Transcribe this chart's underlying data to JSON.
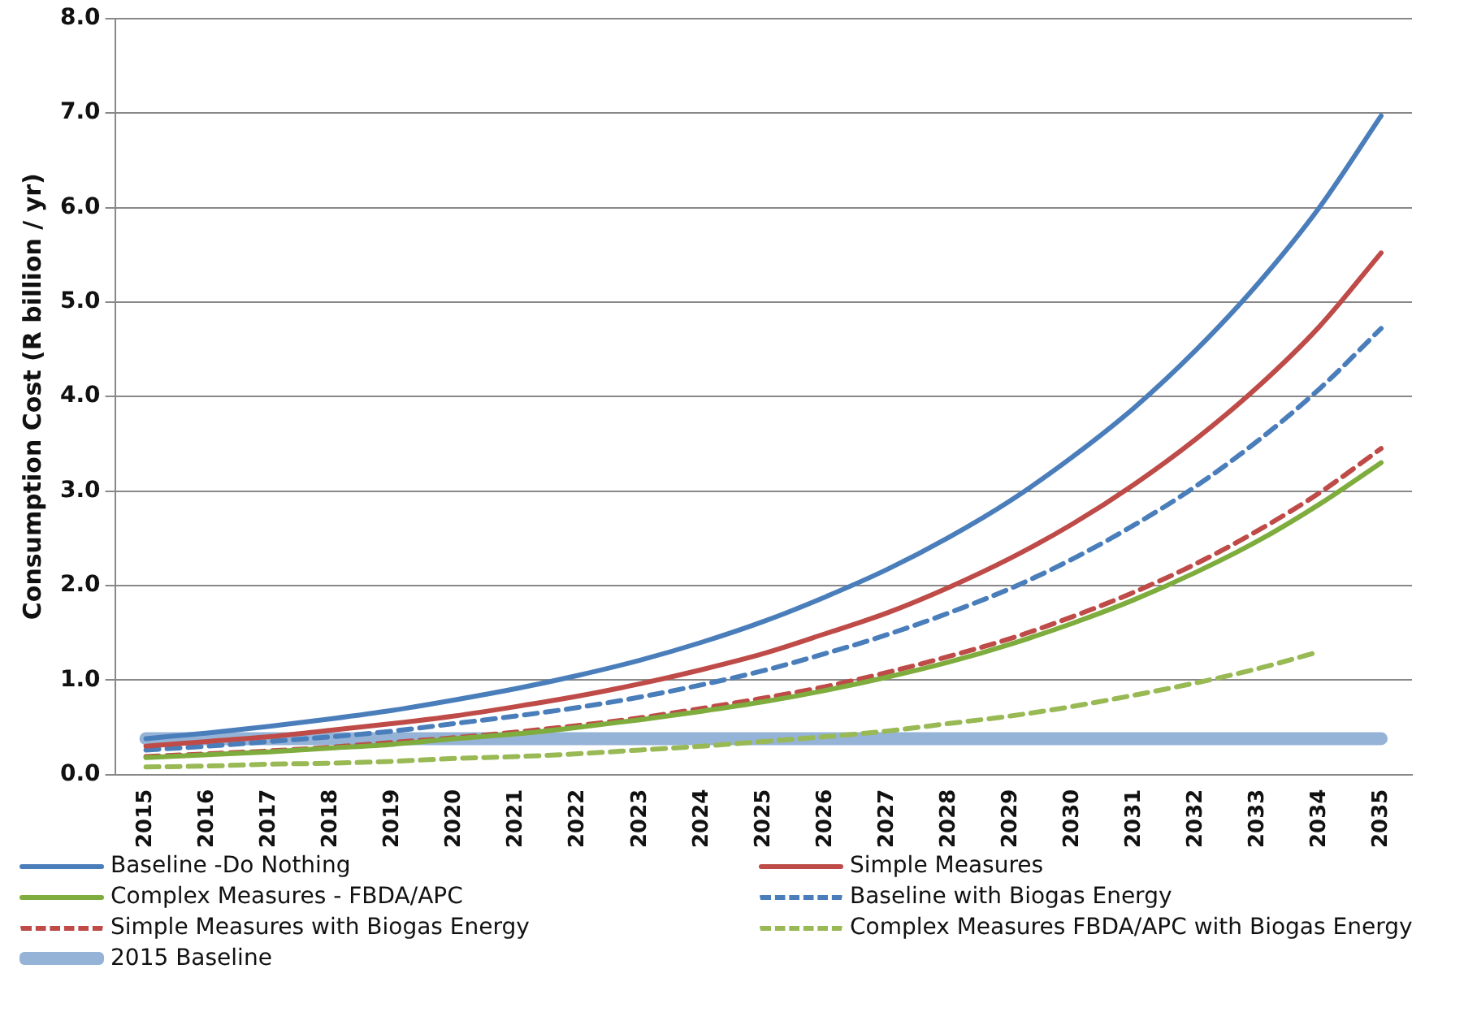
{
  "chart_data": {
    "type": "line",
    "ylabel": "Consumption Cost (R billion / yr)",
    "categories": [
      "2015",
      "2016",
      "2017",
      "2018",
      "2019",
      "2020",
      "2021",
      "2022",
      "2023",
      "2024",
      "2025",
      "2026",
      "2027",
      "2028",
      "2029",
      "2030",
      "2031",
      "2032",
      "2033",
      "2034",
      "2035"
    ],
    "ylim": [
      0,
      8
    ],
    "yticks": [
      {
        "value": 0,
        "label": "0.0"
      },
      {
        "value": 1,
        "label": "1.0"
      },
      {
        "value": 2,
        "label": "2.0"
      },
      {
        "value": 3,
        "label": "3.0"
      },
      {
        "value": 4,
        "label": "4.0"
      },
      {
        "value": 5,
        "label": "5.0"
      },
      {
        "value": 6,
        "label": "6.0"
      },
      {
        "value": 7,
        "label": "7.0"
      },
      {
        "value": 8,
        "label": "8.0"
      }
    ],
    "grid": "y",
    "legend": "bottom",
    "marker": "none",
    "series": [
      {
        "name": "Baseline -Do Nothing",
        "color": "#4a7ebb",
        "line_style": "solid",
        "values": [
          0.38,
          0.44,
          0.51,
          0.59,
          0.68,
          0.79,
          0.91,
          1.05,
          1.21,
          1.4,
          1.62,
          1.88,
          2.17,
          2.51,
          2.9,
          3.36,
          3.88,
          4.49,
          5.19,
          6.0,
          6.97
        ]
      },
      {
        "name": "Simple Measures",
        "color": "#be4b48",
        "line_style": "solid",
        "values": [
          0.3,
          0.35,
          0.4,
          0.47,
          0.54,
          0.62,
          0.72,
          0.83,
          0.96,
          1.11,
          1.28,
          1.49,
          1.71,
          1.98,
          2.29,
          2.65,
          3.07,
          3.55,
          4.1,
          4.74,
          5.52
        ]
      },
      {
        "name": "Complex Measures - FBDA/APC",
        "color": "#7eac3d",
        "line_style": "solid",
        "values": [
          0.18,
          0.21,
          0.24,
          0.28,
          0.32,
          0.38,
          0.43,
          0.5,
          0.58,
          0.67,
          0.77,
          0.89,
          1.03,
          1.19,
          1.38,
          1.6,
          1.85,
          2.14,
          2.47,
          2.86,
          3.3
        ]
      },
      {
        "name": "Baseline with Biogas Energy",
        "color": "#4a7ebb",
        "line_style": "dashed",
        "values": [
          0.26,
          0.3,
          0.35,
          0.4,
          0.46,
          0.54,
          0.62,
          0.71,
          0.82,
          0.95,
          1.1,
          1.28,
          1.48,
          1.71,
          1.97,
          2.28,
          2.64,
          3.05,
          3.53,
          4.08,
          4.72
        ]
      },
      {
        "name": "Simple Measures with Biogas Energy",
        "color": "#be4b48",
        "line_style": "dashed",
        "values": [
          0.19,
          0.22,
          0.25,
          0.29,
          0.34,
          0.39,
          0.45,
          0.52,
          0.6,
          0.7,
          0.81,
          0.93,
          1.08,
          1.25,
          1.44,
          1.67,
          1.93,
          2.23,
          2.58,
          2.98,
          3.45
        ]
      },
      {
        "name": "Complex Measures FBDA/APC with Biogas Energy",
        "color": "#98b954",
        "line_style": "dashed",
        "values": [
          0.08,
          0.09,
          0.11,
          0.12,
          0.14,
          0.17,
          0.19,
          0.22,
          0.26,
          0.3,
          0.35,
          0.4,
          0.46,
          0.54,
          0.62,
          0.72,
          0.84,
          0.97,
          1.12,
          1.3,
          null
        ]
      },
      {
        "name": "2015 Baseline",
        "color": "#95b3d7",
        "line_style": "solid",
        "values": [
          0.38,
          0.38,
          0.38,
          0.38,
          0.38,
          0.38,
          0.38,
          0.38,
          0.38,
          0.38,
          0.38,
          0.38,
          0.38,
          0.38,
          0.38,
          0.38,
          0.38,
          0.38,
          0.38,
          0.38,
          0.38
        ]
      }
    ]
  }
}
